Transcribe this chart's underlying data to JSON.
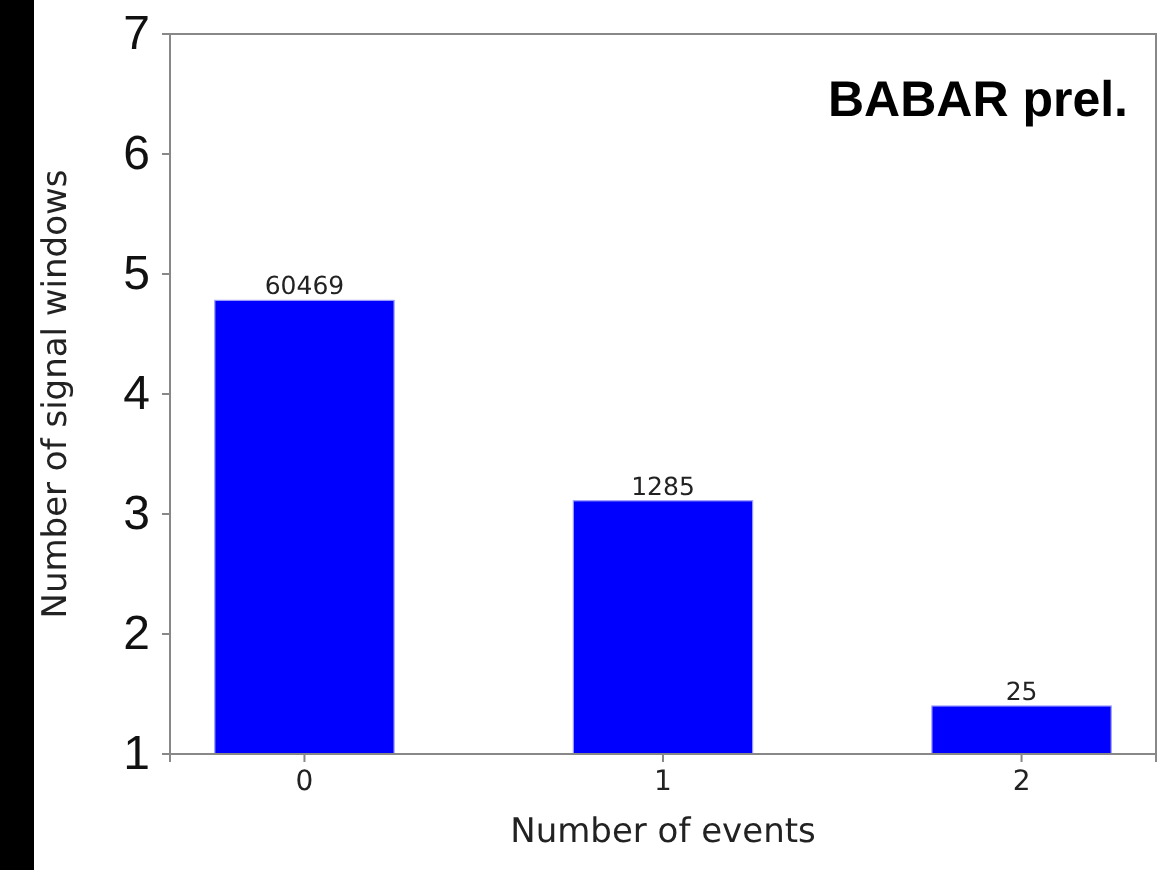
{
  "chart_data": {
    "type": "bar",
    "xlabel": "Number of events",
    "ylabel": "Number of signal windows",
    "categories": [
      "0",
      "1",
      "2"
    ],
    "values": [
      4.78,
      3.11,
      1.4
    ],
    "color": "#0000ff",
    "ylim": [
      1,
      7
    ],
    "yticks": [
      1,
      2,
      3,
      4,
      5,
      6,
      7
    ],
    "grid": false,
    "annotations": [
      "BABAR prel.",
      {
        "text": "60469",
        "x": "0",
        "y": 4.78
      },
      {
        "text": "1285",
        "x": "1",
        "y": 3.11
      },
      {
        "text": "25",
        "x": "2",
        "y": 1.4
      }
    ]
  }
}
